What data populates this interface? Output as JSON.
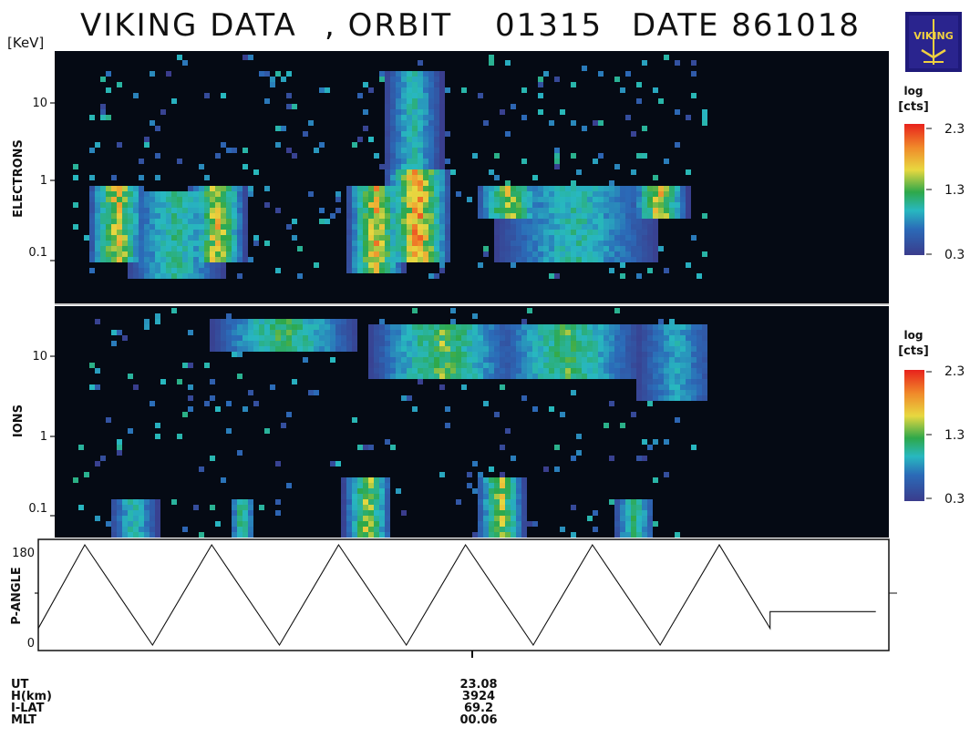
{
  "header": {
    "title_parts": [
      "VIKING DATA",
      ", ORBIT",
      "01315",
      "DATE 861018"
    ],
    "energy_unit": "[KeV]",
    "logo_text": "VIKING",
    "logo_icon": "viking-satellite-logo-icon"
  },
  "colors": {
    "background_panel": "#050a14",
    "scale_high": "#e8221c",
    "scale_mid": "#2ea84a",
    "scale_low": "#3a3c8c",
    "divider": "#c8c8c8"
  },
  "chart_data": [
    {
      "type": "heatmap",
      "name": "ELECTRONS",
      "ylabel": "ELECTRONS",
      "y_scale": "log",
      "y_ticks": [
        "10",
        "1",
        "0.1"
      ],
      "colorbar": {
        "label": [
          "log",
          "[cts]"
        ],
        "ticks": [
          "2.3",
          "1.3",
          "0.3"
        ],
        "range": [
          0.3,
          2.3
        ]
      },
      "bursts": [
        {
          "t": 0.05,
          "width": 0.035,
          "emin": 0.1,
          "emax": 1.2,
          "peak": 2.0
        },
        {
          "t": 0.17,
          "width": 0.035,
          "emin": 0.1,
          "emax": 1.2,
          "peak": 2.0
        },
        {
          "t": 0.12,
          "width": 0.06,
          "emin": 0.06,
          "emax": 1.0,
          "peak": 1.3
        },
        {
          "t": 0.36,
          "width": 0.035,
          "emin": 0.08,
          "emax": 1.2,
          "peak": 2.1
        },
        {
          "t": 0.41,
          "width": 0.04,
          "emin": 0.1,
          "emax": 2.0,
          "peak": 2.3
        },
        {
          "t": 0.405,
          "width": 0.035,
          "emin": 0.8,
          "emax": 40,
          "peak": 1.2
        },
        {
          "t": 0.52,
          "width": 0.04,
          "emin": 0.4,
          "emax": 1.2,
          "peak": 1.9
        },
        {
          "t": 0.7,
          "width": 0.035,
          "emin": 0.4,
          "emax": 1.2,
          "peak": 2.0
        },
        {
          "t": 0.6,
          "width": 0.1,
          "emin": 0.1,
          "emax": 1.2,
          "peak": 1.2
        }
      ],
      "time_extent": [
        0.0,
        0.76
      ]
    },
    {
      "type": "heatmap",
      "name": "IONS",
      "ylabel": "IONS",
      "y_scale": "log",
      "y_ticks": [
        "10",
        "1",
        "0.1"
      ],
      "colorbar": {
        "label": [
          "log",
          "[cts]"
        ],
        "ticks": [
          "2.3",
          "1.3",
          "0.3"
        ],
        "range": [
          0.3,
          2.3
        ]
      },
      "bursts": [
        {
          "t": 0.25,
          "width": 0.09,
          "emin": 12,
          "emax": 30,
          "peak": 1.5
        },
        {
          "t": 0.44,
          "width": 0.09,
          "emin": 5,
          "emax": 25,
          "peak": 1.6
        },
        {
          "t": 0.59,
          "width": 0.09,
          "emin": 5,
          "emax": 25,
          "peak": 1.5
        },
        {
          "t": 0.72,
          "width": 0.05,
          "emin": 3,
          "emax": 25,
          "peak": 1.0
        },
        {
          "t": 0.07,
          "width": 0.03,
          "emin": 0.05,
          "emax": 0.15,
          "peak": 1.2
        },
        {
          "t": 0.2,
          "width": 0.015,
          "emin": 0.05,
          "emax": 0.15,
          "peak": 1.5
        },
        {
          "t": 0.35,
          "width": 0.03,
          "emin": 0.05,
          "emax": 0.3,
          "peak": 1.8
        },
        {
          "t": 0.51,
          "width": 0.03,
          "emin": 0.05,
          "emax": 0.3,
          "peak": 1.8
        },
        {
          "t": 0.67,
          "width": 0.025,
          "emin": 0.05,
          "emax": 0.15,
          "peak": 1.4
        }
      ],
      "time_extent": [
        0.0,
        0.76
      ]
    },
    {
      "type": "line",
      "name": "P-ANGLE",
      "ylabel": "P-ANGLE",
      "y_ticks": [
        "180",
        "0"
      ],
      "ylim": [
        0,
        180
      ],
      "x": [
        0.0,
        0.055,
        0.135,
        0.205,
        0.285,
        0.355,
        0.435,
        0.505,
        0.585,
        0.655,
        0.735,
        0.805,
        0.865,
        0.865,
        0.99
      ],
      "y": [
        30,
        180,
        0,
        180,
        0,
        180,
        0,
        180,
        0,
        180,
        0,
        180,
        30,
        60,
        60
      ]
    }
  ],
  "footer": {
    "labels": [
      "UT",
      "H(km)",
      "I-LAT",
      "MLT"
    ],
    "values": [
      "23.08",
      "3924",
      "69.2",
      "00.06"
    ]
  }
}
